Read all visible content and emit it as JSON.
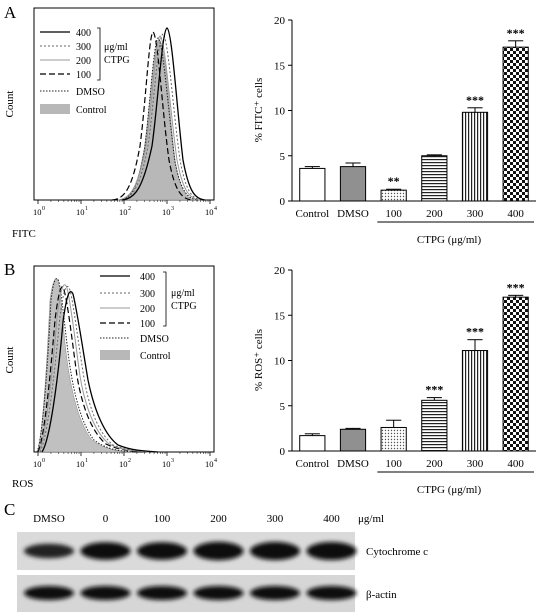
{
  "panels": {
    "A": "A",
    "B": "B",
    "C": "C"
  },
  "flow_legend": {
    "entries": [
      "400",
      "300",
      "200",
      "100",
      "DMSO",
      "Control"
    ],
    "unit": "μg/ml",
    "drug": "CTPG"
  },
  "flow_y_label": "Count",
  "flow_ticks": [
    "10",
    "10",
    "10",
    "10",
    "10",
    "10"
  ],
  "flow_tick_exps": [
    "0",
    "1",
    "2",
    "3",
    "4"
  ],
  "bar_group_label": "CTPG (μg/ml)",
  "chart_data": [
    {
      "type": "histogram",
      "panel": "A",
      "xlabel": "FITC",
      "ylabel": "Count",
      "x_scale": "log",
      "xlim": [
        1,
        10000
      ],
      "series": [
        {
          "name": "400",
          "peak": 1100
        },
        {
          "name": "300",
          "peak": 950
        },
        {
          "name": "200",
          "peak": 850
        },
        {
          "name": "100",
          "peak": 750
        },
        {
          "name": "DMSO",
          "peak": 800
        },
        {
          "name": "Control",
          "peak": 800
        }
      ]
    },
    {
      "type": "bar",
      "panel": "A",
      "ylabel": "% FITC⁺ cells",
      "categories": [
        "Control",
        "DMSO",
        "100",
        "200",
        "300",
        "400"
      ],
      "values": [
        3.6,
        3.8,
        1.2,
        5.0,
        9.8,
        17.0
      ],
      "errors": [
        0.2,
        0.4,
        0.1,
        0.1,
        0.5,
        0.7
      ],
      "significance": [
        "",
        "",
        "**",
        "",
        "***",
        "***"
      ],
      "ylim": [
        0,
        20
      ],
      "yticks": [
        "0",
        "5",
        "10",
        "15",
        "20"
      ]
    },
    {
      "type": "histogram",
      "panel": "B",
      "xlabel": "ROS",
      "ylabel": "Count",
      "x_scale": "log",
      "xlim": [
        1,
        10000
      ],
      "series": [
        {
          "name": "400",
          "peak": 6
        },
        {
          "name": "300",
          "peak": 5
        },
        {
          "name": "200",
          "peak": 4
        },
        {
          "name": "100",
          "peak": 3.5
        },
        {
          "name": "DMSO",
          "peak": 2.5
        },
        {
          "name": "Control",
          "peak": 2.5
        }
      ]
    },
    {
      "type": "bar",
      "panel": "B",
      "ylabel": "% ROS⁺ cells",
      "categories": [
        "Control",
        "DMSO",
        "100",
        "200",
        "300",
        "400"
      ],
      "values": [
        1.7,
        2.4,
        2.6,
        5.6,
        11.1,
        17.0
      ],
      "errors": [
        0.2,
        0.1,
        0.8,
        0.3,
        1.2,
        0.2
      ],
      "significance": [
        "",
        "",
        "",
        "***",
        "***",
        "***"
      ],
      "ylim": [
        0,
        20
      ],
      "yticks": [
        "0",
        "5",
        "10",
        "15",
        "20"
      ]
    }
  ],
  "western": {
    "lanes": [
      "DMSO",
      "0",
      "100",
      "200",
      "300",
      "400"
    ],
    "unit": "μg/ml",
    "rows": [
      {
        "label": "Cytochrome c",
        "intensity": [
          0.55,
          0.85,
          0.85,
          0.95,
          0.92,
          0.9
        ]
      },
      {
        "label": "β-actin",
        "intensity": [
          0.9,
          0.9,
          0.9,
          0.9,
          0.9,
          0.9
        ]
      }
    ]
  }
}
